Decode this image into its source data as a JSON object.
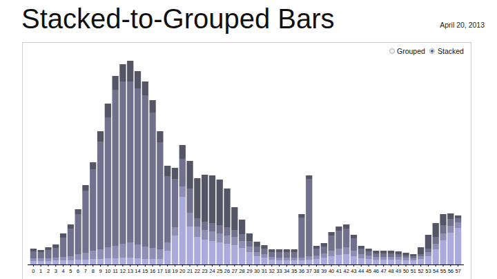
{
  "chart_data": {
    "type": "bar",
    "title": "Stacked-to-Grouped Bars",
    "subtitle": "April 20, 2013",
    "annotations": [
      "Grouped",
      "Stacked"
    ],
    "stacked": true,
    "tick_labels": "x",
    "ylim": [
      0,
      300
    ],
    "categories": [
      "0",
      "1",
      "2",
      "3",
      "4",
      "5",
      "6",
      "7",
      "8",
      "9",
      "10",
      "11",
      "12",
      "13",
      "14",
      "15",
      "16",
      "17",
      "18",
      "19",
      "20",
      "21",
      "22",
      "23",
      "24",
      "25",
      "26",
      "27",
      "28",
      "29",
      "30",
      "31",
      "32",
      "33",
      "34",
      "35",
      "36",
      "37",
      "38",
      "39",
      "40",
      "41",
      "42",
      "43",
      "44",
      "45",
      "46",
      "47",
      "48",
      "49",
      "50",
      "51",
      "52",
      "53",
      "54",
      "55",
      "56",
      "57"
    ],
    "series": [
      {
        "color": "#aaaadd",
        "values": [
          5,
          5,
          5,
          6,
          6,
          6,
          7,
          7,
          8,
          8,
          9,
          9,
          10,
          10,
          9,
          8,
          8,
          8,
          20,
          42,
          98,
          55,
          40,
          36,
          34,
          32,
          30,
          28,
          24,
          18,
          12,
          10,
          7,
          6,
          6,
          6,
          6,
          7,
          8,
          10,
          12,
          14,
          15,
          12,
          9,
          8,
          7,
          7,
          7,
          7,
          6,
          6,
          8,
          12,
          22,
          35,
          46,
          53
        ]
      },
      {
        "color": "#8e8eb5",
        "values": [
          4,
          4,
          4,
          4,
          5,
          6,
          8,
          10,
          12,
          14,
          16,
          18,
          20,
          22,
          20,
          18,
          16,
          14,
          12,
          12,
          15,
          20,
          15,
          14,
          14,
          13,
          12,
          12,
          10,
          8,
          6,
          5,
          4,
          4,
          4,
          4,
          4,
          5,
          5,
          6,
          8,
          9,
          10,
          8,
          6,
          5,
          4,
          4,
          4,
          4,
          4,
          3,
          4,
          6,
          8,
          10,
          10,
          8
        ]
      },
      {
        "color": "#71718e",
        "values": [
          10,
          9,
          12,
          14,
          28,
          40,
          58,
          90,
          118,
          156,
          188,
          226,
          235,
          233,
          226,
          219,
          196,
          155,
          96,
          70,
          40,
          35,
          12,
          12,
          12,
          12,
          12,
          10,
          10,
          8,
          8,
          8,
          7,
          8,
          8,
          8,
          58,
          112,
          10,
          10,
          22,
          26,
          27,
          18,
          8,
          6,
          5,
          5,
          5,
          4,
          3,
          3,
          3,
          5,
          10,
          12,
          10,
          6
        ]
      },
      {
        "color": "#555566",
        "values": [
          4,
          3,
          4,
          5,
          6,
          6,
          7,
          8,
          10,
          15,
          20,
          20,
          25,
          30,
          25,
          20,
          18,
          16,
          15,
          16,
          20,
          40,
          58,
          68,
          69,
          66,
          56,
          33,
          21,
          11,
          7,
          5,
          4,
          4,
          4,
          4,
          5,
          5,
          4,
          5,
          5,
          6,
          6,
          5,
          4,
          4,
          4,
          4,
          4,
          4,
          4,
          3,
          10,
          20,
          20,
          16,
          8,
          4
        ]
      }
    ]
  }
}
